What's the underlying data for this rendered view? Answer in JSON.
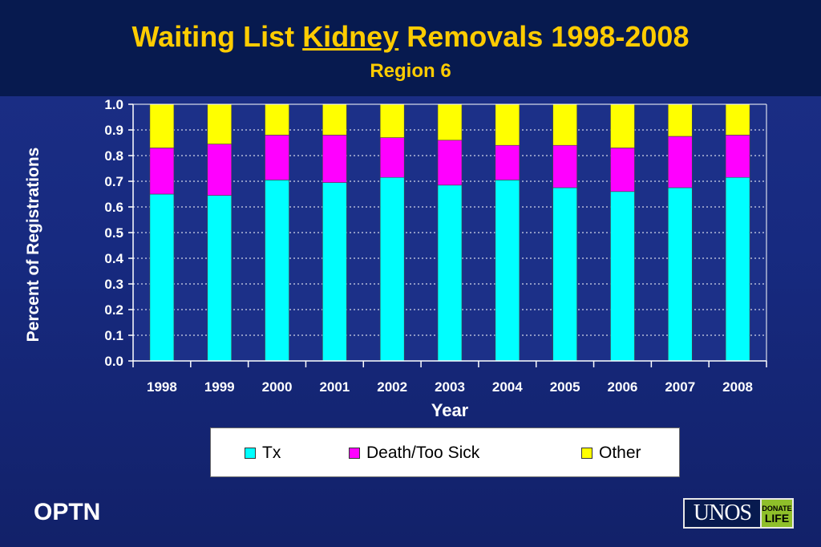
{
  "header": {
    "title_pre": "Waiting List ",
    "title_keyword": "Kidney",
    "title_post": " Removals 1998-2008",
    "subtitle": "Region 6"
  },
  "chart_data": {
    "type": "bar",
    "stacked": true,
    "categories": [
      "1998",
      "1999",
      "2000",
      "2001",
      "2002",
      "2003",
      "2004",
      "2005",
      "2006",
      "2007",
      "2008"
    ],
    "series": [
      {
        "name": "Tx",
        "color": "#00ffff",
        "values": [
          0.65,
          0.645,
          0.705,
          0.695,
          0.715,
          0.685,
          0.705,
          0.675,
          0.66,
          0.675,
          0.715
        ]
      },
      {
        "name": "Death/Too Sick",
        "color": "#ff00ff",
        "values": [
          0.18,
          0.2,
          0.175,
          0.185,
          0.155,
          0.175,
          0.135,
          0.165,
          0.17,
          0.2,
          0.165
        ]
      },
      {
        "name": "Other",
        "color": "#ffff00",
        "values": [
          0.17,
          0.155,
          0.12,
          0.12,
          0.13,
          0.14,
          0.16,
          0.16,
          0.17,
          0.125,
          0.12
        ]
      }
    ],
    "ylabel": "Percent of Registrations",
    "xlabel": "Year",
    "ylim": [
      0,
      1
    ],
    "yticks": [
      "0.0",
      "0.1",
      "0.2",
      "0.3",
      "0.4",
      "0.5",
      "0.6",
      "0.7",
      "0.8",
      "0.9",
      "1.0"
    ],
    "grid": "dotted horizontal",
    "legend_position": "bottom",
    "colors": {
      "plot_bg": "#1c3088",
      "axis": "#ffffff",
      "grid": "#ffffff"
    }
  },
  "footer": {
    "left_label": "OPTN",
    "logo_text": "UNOS",
    "logo_badge_top": "DONATE",
    "logo_badge_bottom": "LIFE"
  }
}
